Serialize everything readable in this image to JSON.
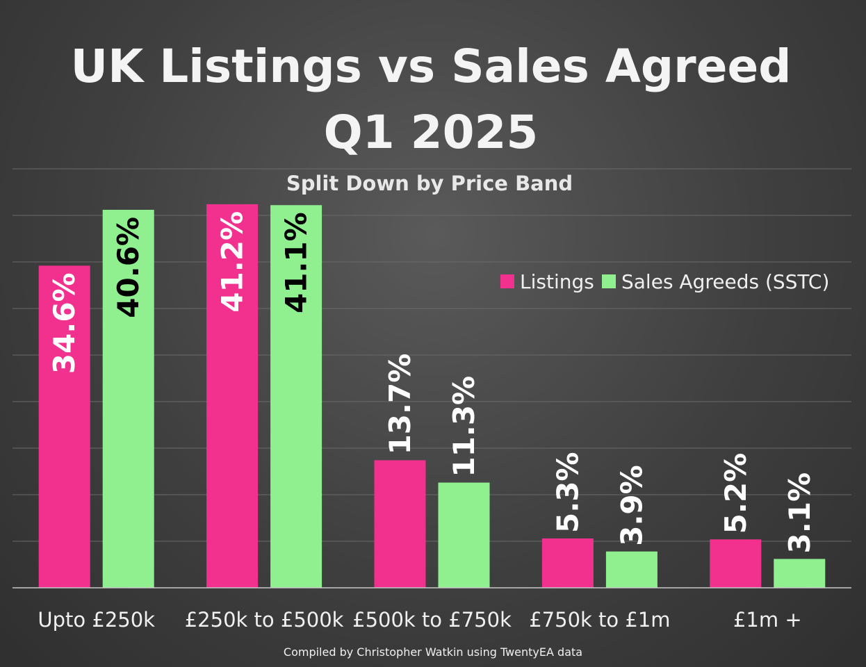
{
  "chart_data": {
    "type": "bar",
    "title_line1": "UK Listings vs Sales Agreed",
    "title_line2": "Q1 2025",
    "subtitle": "Split Down by Price Band",
    "categories": [
      "Upto £250k",
      "£250k to £500k",
      "£500k to £750k",
      "£750k to £1m",
      "£1m +"
    ],
    "series": [
      {
        "name": "Listings",
        "color": "#f2318e",
        "values": [
          34.6,
          41.2,
          13.7,
          5.3,
          5.2
        ],
        "labels": [
          "34.6%",
          "41.2%",
          "13.7%",
          "5.3%",
          "5.2%"
        ]
      },
      {
        "name": "Sales Agreeds (SSTC)",
        "color": "#90f090",
        "values": [
          40.6,
          41.1,
          11.3,
          3.9,
          3.1
        ],
        "labels": [
          "40.6%",
          "41.1%",
          "11.3%",
          "3.9%",
          "3.1%"
        ]
      }
    ],
    "ylim": [
      0,
      45
    ],
    "grid": true,
    "legend_position": "right",
    "credit": "Compiled by Christopher Watkin using TwentyEA data"
  }
}
